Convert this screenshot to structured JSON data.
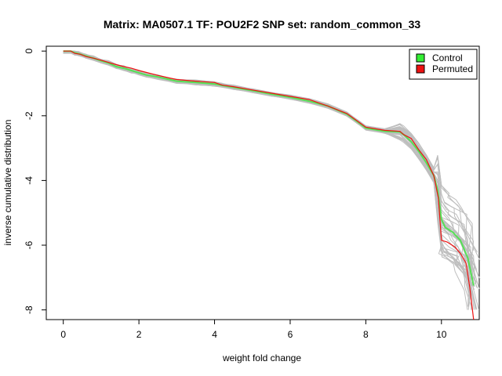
{
  "chart_data": {
    "type": "line",
    "title": "Matrix: MA0507.1 TF: POU2F2 SNP set: random_common_33",
    "xlabel": "weight fold change",
    "ylabel": "inverse cumulative distribution",
    "xlim": [
      -0.45,
      11.0
    ],
    "ylim": [
      -8.3,
      0.15
    ],
    "xticks": [
      0,
      2,
      4,
      6,
      8,
      10
    ],
    "yticks": [
      0,
      -2,
      -4,
      -6,
      -8
    ],
    "legend": {
      "position": "top-right",
      "entries": [
        {
          "label": "Control",
          "color": "#33ee33"
        },
        {
          "label": "Permuted",
          "color": "#ee1111"
        }
      ]
    },
    "series": [
      {
        "name": "Control",
        "color": "#55e055",
        "points": [
          [
            0.0,
            0.0
          ],
          [
            0.2,
            0.0
          ],
          [
            0.3,
            -0.05
          ],
          [
            0.4,
            -0.08
          ],
          [
            0.6,
            -0.15
          ],
          [
            0.8,
            -0.22
          ],
          [
            1.0,
            -0.3
          ],
          [
            1.2,
            -0.37
          ],
          [
            1.4,
            -0.48
          ],
          [
            1.6,
            -0.53
          ],
          [
            1.8,
            -0.6
          ],
          [
            2.0,
            -0.67
          ],
          [
            2.2,
            -0.74
          ],
          [
            2.5,
            -0.8
          ],
          [
            2.8,
            -0.88
          ],
          [
            3.0,
            -0.93
          ],
          [
            3.5,
            -0.97
          ],
          [
            4.0,
            -1.02
          ],
          [
            4.2,
            -1.06
          ],
          [
            4.5,
            -1.12
          ],
          [
            5.0,
            -1.22
          ],
          [
            5.5,
            -1.33
          ],
          [
            6.0,
            -1.43
          ],
          [
            6.5,
            -1.55
          ],
          [
            7.0,
            -1.7
          ],
          [
            7.5,
            -1.95
          ],
          [
            7.8,
            -2.2
          ],
          [
            8.0,
            -2.38
          ],
          [
            8.5,
            -2.48
          ],
          [
            8.9,
            -2.5
          ],
          [
            9.0,
            -2.58
          ],
          [
            9.2,
            -2.8
          ],
          [
            9.4,
            -3.1
          ],
          [
            9.6,
            -3.45
          ],
          [
            9.8,
            -3.85
          ],
          [
            9.9,
            -4.3
          ],
          [
            10.0,
            -5.2
          ],
          [
            10.1,
            -5.45
          ],
          [
            10.3,
            -5.6
          ],
          [
            10.5,
            -5.85
          ],
          [
            10.7,
            -6.4
          ],
          [
            10.85,
            -7.25
          ]
        ]
      },
      {
        "name": "Permuted",
        "color": "#ee1111",
        "points": [
          [
            0.0,
            0.0
          ],
          [
            0.2,
            0.0
          ],
          [
            0.3,
            -0.07
          ],
          [
            0.45,
            -0.1
          ],
          [
            0.6,
            -0.17
          ],
          [
            0.8,
            -0.22
          ],
          [
            1.0,
            -0.28
          ],
          [
            1.2,
            -0.35
          ],
          [
            1.4,
            -0.42
          ],
          [
            1.6,
            -0.48
          ],
          [
            1.8,
            -0.53
          ],
          [
            2.0,
            -0.6
          ],
          [
            2.2,
            -0.66
          ],
          [
            2.5,
            -0.75
          ],
          [
            2.8,
            -0.83
          ],
          [
            3.0,
            -0.88
          ],
          [
            3.5,
            -0.93
          ],
          [
            4.0,
            -0.97
          ],
          [
            4.2,
            -1.05
          ],
          [
            4.5,
            -1.1
          ],
          [
            5.0,
            -1.2
          ],
          [
            5.5,
            -1.3
          ],
          [
            6.0,
            -1.4
          ],
          [
            6.5,
            -1.5
          ],
          [
            7.0,
            -1.7
          ],
          [
            7.5,
            -1.93
          ],
          [
            7.8,
            -2.18
          ],
          [
            8.0,
            -2.35
          ],
          [
            8.5,
            -2.45
          ],
          [
            8.9,
            -2.48
          ],
          [
            9.0,
            -2.58
          ],
          [
            9.2,
            -2.7
          ],
          [
            9.4,
            -3.05
          ],
          [
            9.6,
            -3.35
          ],
          [
            9.8,
            -3.85
          ],
          [
            9.92,
            -4.55
          ],
          [
            10.0,
            -5.85
          ],
          [
            10.15,
            -5.9
          ],
          [
            10.35,
            -6.05
          ],
          [
            10.5,
            -6.25
          ],
          [
            10.65,
            -6.55
          ],
          [
            10.75,
            -7.3
          ],
          [
            10.85,
            -8.3
          ]
        ]
      }
    ],
    "background_series_color": "#bebebe",
    "background_series_count": 40
  }
}
